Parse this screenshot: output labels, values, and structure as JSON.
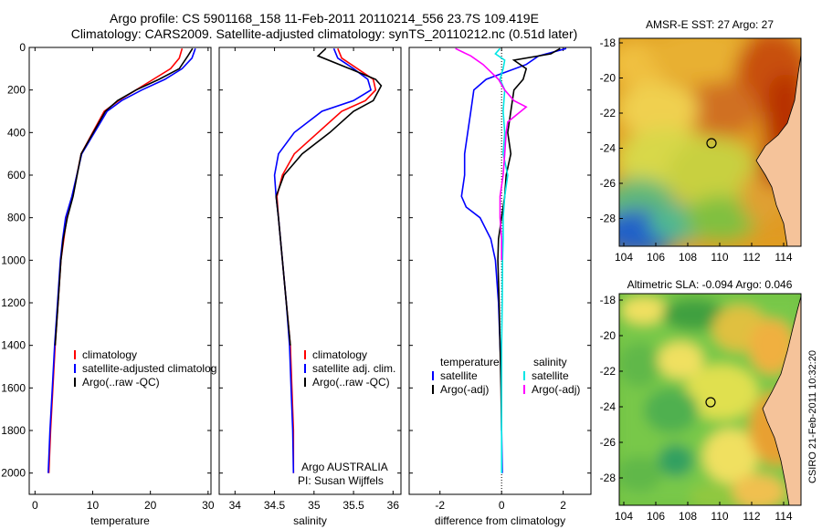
{
  "titles": {
    "line1": "Argo profile: CS 5901168_158 11-Feb-2011 20110214_556 23.7S 109.419E",
    "line2": "Climatology: CARS2009. Satellite-adjusted climatology: synTS_20110212.nc (0.51d later)"
  },
  "chart_data": [
    {
      "type": "line",
      "panel": "temperature",
      "xlabel": "temperature",
      "ylabel": "",
      "xlim": [
        -1,
        30.5
      ],
      "ylim": [
        0,
        2100
      ],
      "y_inverted": true,
      "xticks": [
        0,
        10,
        20,
        30
      ],
      "yticks": [
        0,
        200,
        400,
        600,
        800,
        1000,
        1200,
        1400,
        1600,
        1800,
        2000
      ],
      "legend": {
        "placement": "lower-right",
        "entries": [
          {
            "label": "climatology",
            "color": "#ff0000"
          },
          {
            "label": "satellite-adjusted climatolog",
            "color": "#0000ff"
          },
          {
            "label": "Argo(..raw -QC)",
            "color": "#000000"
          }
        ]
      },
      "series": [
        {
          "key": "clim",
          "color": "#ff0000",
          "x": [
            25.5,
            25.0,
            23.5,
            20.5,
            17.5,
            14.5,
            12.0,
            10.0,
            8.0,
            6.5,
            5.5,
            5.0,
            4.5,
            4.0,
            3.5,
            3.1,
            2.7,
            2.4
          ],
          "y": [
            5,
            50,
            100,
            150,
            200,
            250,
            300,
            400,
            500,
            700,
            800,
            900,
            1000,
            1200,
            1400,
            1600,
            1800,
            2000
          ]
        },
        {
          "key": "sat",
          "color": "#0000ff",
          "x": [
            27.8,
            27.2,
            25.5,
            22.5,
            18.5,
            15.0,
            12.5,
            10.3,
            8.1,
            6.4,
            5.3,
            4.8,
            4.4,
            3.9,
            3.4,
            3.0,
            2.6,
            2.3
          ],
          "y": [
            5,
            50,
            100,
            150,
            200,
            250,
            300,
            400,
            500,
            700,
            800,
            900,
            1000,
            1200,
            1400,
            1600,
            1800,
            2000
          ]
        },
        {
          "key": "argo",
          "color": "#000000",
          "x": [
            27.3,
            26.5,
            25.0,
            21.5,
            17.5,
            14.3,
            12.2,
            10.1,
            8.0,
            6.6,
            5.6,
            4.9,
            4.5,
            4.0,
            3.5
          ],
          "y": [
            5,
            40,
            100,
            150,
            200,
            250,
            300,
            400,
            500,
            700,
            800,
            900,
            1000,
            1200,
            1400
          ]
        }
      ],
      "annotations": []
    },
    {
      "type": "line",
      "panel": "salinity",
      "xlabel": "salinity",
      "ylabel": "",
      "xlim": [
        33.8,
        36.1
      ],
      "ylim": [
        0,
        2100
      ],
      "y_inverted": true,
      "xticks": [
        34,
        34.5,
        35,
        35.5,
        36
      ],
      "yticks": [
        0,
        200,
        400,
        600,
        800,
        1000,
        1200,
        1400,
        1600,
        1800,
        2000
      ],
      "legend": {
        "placement": "lower-right",
        "entries": [
          {
            "label": "climatology",
            "color": "#ff0000"
          },
          {
            "label": "satellite adj. clim.",
            "color": "#0000ff"
          },
          {
            "label": "Argo(..raw -QC)",
            "color": "#000000"
          }
        ]
      },
      "series": [
        {
          "key": "clim",
          "color": "#ff0000",
          "x": [
            35.3,
            35.35,
            35.55,
            35.75,
            35.78,
            35.65,
            35.35,
            35.05,
            34.75,
            34.6,
            34.53,
            34.55,
            34.6,
            34.65,
            34.7,
            34.72,
            34.74,
            34.74
          ],
          "y": [
            5,
            50,
            100,
            150,
            200,
            250,
            300,
            400,
            500,
            600,
            700,
            800,
            1000,
            1200,
            1400,
            1600,
            1800,
            2000
          ]
        },
        {
          "key": "sat",
          "color": "#0000ff",
          "x": [
            35.25,
            35.3,
            35.5,
            35.68,
            35.72,
            35.5,
            35.1,
            34.75,
            34.55,
            34.5,
            34.52,
            34.55,
            34.6,
            34.65,
            34.69,
            34.71,
            34.73,
            34.74
          ],
          "y": [
            5,
            50,
            100,
            150,
            200,
            250,
            300,
            400,
            500,
            600,
            700,
            800,
            1000,
            1200,
            1400,
            1600,
            1800,
            2000
          ]
        },
        {
          "key": "argo",
          "color": "#000000",
          "x": [
            35.15,
            35.05,
            35.45,
            35.78,
            35.85,
            35.75,
            35.5,
            35.2,
            34.85,
            34.62,
            34.52,
            34.55,
            34.6,
            34.65,
            34.7
          ],
          "y": [
            5,
            40,
            100,
            150,
            180,
            250,
            300,
            400,
            500,
            600,
            700,
            800,
            1000,
            1200,
            1400
          ]
        }
      ],
      "annotations": [
        "Argo AUSTRALIA",
        "PI: Susan Wijffels"
      ]
    },
    {
      "type": "line",
      "panel": "difference",
      "xlabel": "difference from climatology",
      "ylabel": "",
      "xlim": [
        -3.0,
        2.9
      ],
      "ylim": [
        0,
        2100
      ],
      "y_inverted": true,
      "xticks": [
        -2,
        0,
        2
      ],
      "yticks": [
        0,
        200,
        400,
        600,
        800,
        1000,
        1200,
        1400,
        1600,
        1800,
        2000
      ],
      "legend": {
        "placement": "lower-center",
        "entries": [
          {
            "label": "temperature",
            "color": "",
            "heading": true
          },
          {
            "label": "satellite",
            "color": "#0000ff"
          },
          {
            "label": "Argo(-adj)",
            "color": "#000000"
          },
          {
            "label": "salinity",
            "color": "",
            "heading": true
          },
          {
            "label": "satellite",
            "color": "#00e5e5"
          },
          {
            "label": "Argo(-adj)",
            "color": "#ff00ff"
          }
        ]
      },
      "series": [
        {
          "key": "temp_sat",
          "color": "#0000ff",
          "x": [
            2.1,
            1.2,
            0.8,
            -0.5,
            -0.9,
            -1.0,
            -1.1,
            -1.2,
            -1.2,
            -1.3,
            -1.15,
            -0.7,
            -0.35,
            -0.2,
            -0.1,
            -0.05,
            0.0,
            0.0,
            0.02
          ],
          "y": [
            5,
            40,
            80,
            150,
            200,
            300,
            400,
            500,
            600,
            700,
            750,
            800,
            900,
            1000,
            1200,
            1400,
            1600,
            1800,
            2000
          ]
        },
        {
          "key": "temp_argo",
          "color": "#000000",
          "x": [
            1.9,
            1.6,
            0.4,
            0.8,
            0.7,
            0.4,
            0.3,
            0.2,
            0.3,
            0.15,
            0.1,
            0.0,
            -0.1,
            -0.12,
            -0.08,
            -0.05,
            -0.02,
            0.0
          ],
          "y": [
            5,
            30,
            60,
            100,
            150,
            200,
            300,
            400,
            500,
            600,
            700,
            800,
            900,
            1000,
            1200,
            1400,
            1600,
            1800
          ]
        },
        {
          "key": "sal_sat",
          "color": "#00e5e5",
          "x": [
            -0.05,
            -0.2,
            0.1,
            0.05,
            -0.05,
            0.1,
            0.05,
            0.1,
            0.05,
            0.2,
            0.1,
            0.05,
            0.05,
            0.03,
            0.02,
            0.0,
            0.0,
            0.0,
            0.0
          ],
          "y": [
            5,
            30,
            60,
            100,
            150,
            200,
            300,
            400,
            500,
            600,
            700,
            800,
            900,
            1000,
            1200,
            1400,
            1600,
            1800,
            2000
          ]
        },
        {
          "key": "sal_argo",
          "color": "#ff00ff",
          "x": [
            -1.5,
            -1.0,
            -0.6,
            -0.1,
            0.1,
            0.4,
            0.8,
            0.2,
            0.15,
            0.1,
            0.05,
            -0.05,
            -0.05,
            0.0,
            0.0
          ],
          "y": [
            5,
            40,
            80,
            150,
            200,
            250,
            280,
            350,
            400,
            500,
            600,
            700,
            800,
            900,
            1000
          ]
        }
      ],
      "annotations": []
    }
  ],
  "maps": [
    {
      "title": "AMSR-E SST: 27 Argo: 27",
      "xticks": [
        "104",
        "106",
        "108",
        "110",
        "112",
        "114"
      ],
      "yticks": [
        "-18",
        "-20",
        "-22",
        "-24",
        "-26"
      ],
      "yticks_extra": "-28"
    },
    {
      "title": "Altimetric SLA: -0.094 Argo: 0.046",
      "xticks": [
        "104",
        "106",
        "108",
        "110",
        "112",
        "114"
      ],
      "yticks": [
        "-18",
        "-20",
        "-22",
        "-24",
        "-26",
        "-28"
      ]
    }
  ],
  "credit": "CSIRO 21-Feb-2011 10:32:20"
}
